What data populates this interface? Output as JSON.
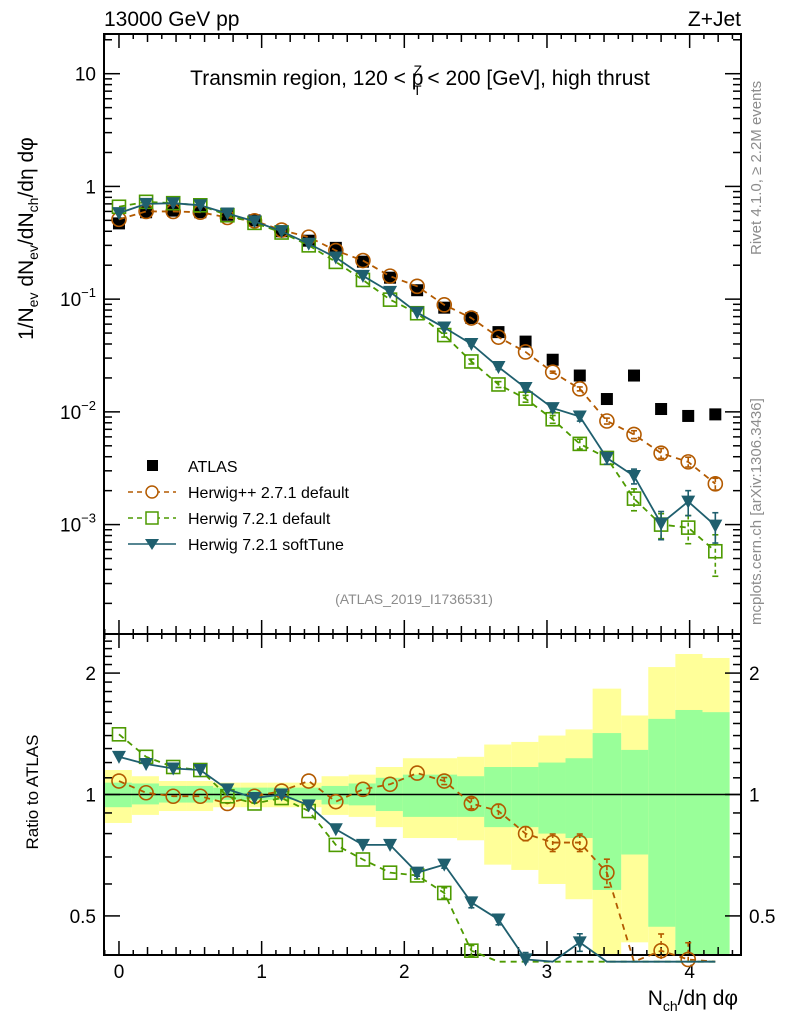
{
  "header": {
    "left": "13000 GeV pp",
    "right": "Z+Jet"
  },
  "side_labels": {
    "rivet": "Rivet 4.1.0, ≥ 2.2M events",
    "mcplots": "mcplots.cern.ch [arXiv:1306.3436]"
  },
  "chart_data": [
    {
      "type": "scatter",
      "title": "Transmin region, 120 < p_T^Z < 200 [GeV], high thrust",
      "title_parts": {
        "pre": "Transmin region, 120 < p",
        "sup": "Z",
        "sub": "T",
        "post": " < 200 [GeV], high thrust"
      },
      "ylabel": "1/N_ev dN_ev/dN_ch/dη dφ",
      "ylabel_parts": [
        "1/N",
        "ev",
        " dN",
        "ev",
        "/dN",
        "ch",
        "/dη dφ"
      ],
      "xlabel": "N_ch/dη dφ",
      "yscale": "log",
      "ylim": [
        0.000107,
        22.5
      ],
      "xlim": [
        -0.105,
        4.36
      ],
      "yticks": [
        {
          "value": 10,
          "label": "10",
          "exp": ""
        },
        {
          "value": 1,
          "label": "1",
          "exp": ""
        },
        {
          "value": 0.1,
          "label": "10",
          "exp": "−1"
        },
        {
          "value": 0.01,
          "label": "10",
          "exp": "−2"
        },
        {
          "value": 0.001,
          "label": "10",
          "exp": "−3"
        }
      ],
      "annotation": "(ATLAS_2019_I1736531)",
      "legend_position": "lower-left",
      "x": [
        0,
        0.19,
        0.38,
        0.57,
        0.76,
        0.95,
        1.14,
        1.33,
        1.52,
        1.71,
        1.9,
        2.09,
        2.28,
        2.47,
        2.66,
        2.85,
        3.04,
        3.23,
        3.42,
        3.61,
        3.8,
        3.99,
        4.18
      ],
      "series": [
        {
          "name": "ATLAS",
          "style": "data",
          "color": "#000000",
          "values": [
            0.47,
            0.59,
            0.61,
            0.59,
            0.56,
            0.5,
            0.4,
            0.33,
            0.285,
            0.215,
            0.155,
            0.12,
            0.084,
            0.068,
            0.051,
            0.042,
            0.029,
            0.021,
            0.013,
            0.021,
            0.0106,
            0.0092,
            0.0095
          ]
        },
        {
          "name": "Herwig++ 2.7.1 default",
          "style": "circle-dashed",
          "color": "#b35a00",
          "values": [
            0.51,
            0.6,
            0.6,
            0.59,
            0.53,
            0.495,
            0.41,
            0.355,
            0.27,
            0.22,
            0.16,
            0.13,
            0.089,
            0.068,
            0.046,
            0.034,
            0.0225,
            0.016,
            0.0083,
            0.0063,
            0.0043,
            0.0036,
            0.0023
          ],
          "errors": [
            0,
            0,
            0,
            0,
            0,
            0,
            0,
            0,
            0,
            0,
            0,
            0,
            0,
            0,
            0,
            0,
            0.02,
            0.04,
            0.06,
            0.08,
            0.1,
            0.1,
            0.12
          ]
        },
        {
          "name": "Herwig 7.2.1 default",
          "style": "square-dashed",
          "color": "#4d9a00",
          "values": [
            0.66,
            0.73,
            0.71,
            0.68,
            0.555,
            0.475,
            0.39,
            0.3,
            0.214,
            0.148,
            0.099,
            0.075,
            0.048,
            0.028,
            0.0175,
            0.0131,
            0.0086,
            0.0052,
            0.0039,
            0.0017,
            0.001,
            0.00094,
            0.00058
          ],
          "errors": [
            0,
            0,
            0,
            0,
            0,
            0,
            0,
            0,
            0,
            0,
            0,
            0,
            0.04,
            0.05,
            0.06,
            0.07,
            0.08,
            0.1,
            0.12,
            0.22,
            0.25,
            0.28,
            0.4
          ]
        },
        {
          "name": "Herwig 7.2.1 softTune",
          "style": "triangle-solid",
          "color": "#1f5f6e",
          "values": [
            0.58,
            0.7,
            0.71,
            0.68,
            0.575,
            0.49,
            0.4,
            0.31,
            0.234,
            0.161,
            0.116,
            0.076,
            0.056,
            0.04,
            0.025,
            0.0163,
            0.0108,
            0.0091,
            0.0039,
            0.0027,
            0.00102,
            0.0016,
            0.00098
          ],
          "errors": [
            0,
            0,
            0,
            0,
            0,
            0,
            0,
            0,
            0,
            0,
            0,
            0,
            0.03,
            0.04,
            0.05,
            0.06,
            0.07,
            0.09,
            0.12,
            0.15,
            0.28,
            0.25,
            0.3
          ]
        }
      ]
    },
    {
      "type": "scatter",
      "ylabel": "Ratio to ATLAS",
      "xlabel": "N_ch/dη dφ",
      "xlabel_parts": [
        "N",
        "ch",
        "/dη dφ"
      ],
      "yscale": "log",
      "ylim": [
        0.4,
        2.5
      ],
      "xlim": [
        -0.105,
        4.36
      ],
      "yticks": [
        {
          "value": 2,
          "label": "2"
        },
        {
          "value": 1,
          "label": "1"
        },
        {
          "value": 0.5,
          "label": "0.5"
        }
      ],
      "xticks": [
        {
          "value": 0,
          "label": "0"
        },
        {
          "value": 1,
          "label": "1"
        },
        {
          "value": 2,
          "label": "2"
        },
        {
          "value": 3,
          "label": "3"
        },
        {
          "value": 4,
          "label": "4"
        }
      ],
      "reference_line": 1,
      "bins": [
        -0.105,
        0.09,
        0.28,
        0.47,
        0.66,
        0.85,
        1.04,
        1.23,
        1.42,
        1.61,
        1.8,
        1.99,
        2.18,
        2.37,
        2.56,
        2.75,
        2.94,
        3.13,
        3.32,
        3.52,
        3.71,
        3.9,
        4.09,
        4.28
      ],
      "band_total": {
        "color": "#ffff99",
        "upper": [
          1.15,
          1.11,
          1.08,
          1.08,
          1.07,
          1.07,
          1.07,
          1.07,
          1.11,
          1.12,
          1.17,
          1.23,
          1.23,
          1.24,
          1.33,
          1.35,
          1.4,
          1.45,
          1.83,
          1.57,
          2.07,
          2.23,
          2.18
        ],
        "lower": [
          0.85,
          0.89,
          0.91,
          0.91,
          0.93,
          0.93,
          0.93,
          0.93,
          0.89,
          0.88,
          0.83,
          0.78,
          0.78,
          0.77,
          0.67,
          0.65,
          0.6,
          0.55,
          0.3,
          0.43,
          0.3,
          0.3,
          0.38
        ]
      },
      "band_stat": {
        "color": "#99ff99",
        "upper": [
          1.07,
          1.065,
          1.05,
          1.05,
          1.04,
          1.04,
          1.04,
          1.04,
          1.05,
          1.065,
          1.1,
          1.12,
          1.12,
          1.11,
          1.17,
          1.17,
          1.2,
          1.23,
          1.42,
          1.29,
          1.54,
          1.62,
          1.6
        ],
        "lower": [
          0.93,
          0.945,
          0.955,
          0.955,
          0.97,
          0.97,
          0.97,
          0.97,
          0.945,
          0.94,
          0.91,
          0.88,
          0.88,
          0.88,
          0.83,
          0.83,
          0.8,
          0.78,
          0.58,
          0.71,
          0.47,
          0.3,
          0.3
        ]
      },
      "series": [
        {
          "name": "Herwig++ 2.7.1 default",
          "style": "circle-dashed",
          "color": "#b35a00",
          "values": [
            1.08,
            1.01,
            0.99,
            0.99,
            0.95,
            0.99,
            1.02,
            1.08,
            0.96,
            1.03,
            1.06,
            1.13,
            1.08,
            0.95,
            0.91,
            0.8,
            0.76,
            0.76,
            0.64,
            0.3,
            0.41,
            0.39,
            0.25
          ],
          "errors": [
            0,
            0,
            0,
            0,
            0,
            0,
            0,
            0,
            0,
            0,
            0,
            0,
            0.02,
            0.03,
            0.04,
            0.04,
            0.05,
            0.05,
            0.08,
            0.1,
            0.1,
            0.1,
            0.1
          ]
        },
        {
          "name": "Herwig 7.2.1 default",
          "style": "square-dashed",
          "color": "#4d9a00",
          "values": [
            1.41,
            1.24,
            1.17,
            1.15,
            0.99,
            0.95,
            0.98,
            0.91,
            0.75,
            0.69,
            0.64,
            0.63,
            0.57,
            0.41,
            0.34,
            0.31,
            0.3,
            0.25,
            0.3,
            0.08,
            0.09,
            0.1,
            0.06
          ],
          "errors": [
            0,
            0,
            0,
            0,
            0,
            0,
            0,
            0,
            0,
            0,
            0,
            0.02,
            0.03,
            0.03,
            0.03,
            0.03,
            0.03,
            0.03,
            0.04,
            0.02,
            0.02,
            0.03,
            0.02
          ]
        },
        {
          "name": "Herwig 7.2.1 softTune",
          "style": "triangle-solid",
          "color": "#1f5f6e",
          "values": [
            1.24,
            1.19,
            1.16,
            1.15,
            1.03,
            0.98,
            1.0,
            0.94,
            0.82,
            0.75,
            0.75,
            0.64,
            0.67,
            0.54,
            0.49,
            0.39,
            0.37,
            0.43,
            0.3,
            0.13,
            0.1,
            0.17,
            0.1
          ],
          "errors": [
            0,
            0,
            0,
            0,
            0,
            0,
            0,
            0,
            0,
            0,
            0,
            0.02,
            0.02,
            0.03,
            0.03,
            0.04,
            0.04,
            0.05,
            0.06,
            0.05,
            0.05,
            0.05,
            0.05
          ]
        }
      ]
    }
  ],
  "legend": [
    {
      "label": "ATLAS",
      "style": "data",
      "color": "#000000"
    },
    {
      "label": "Herwig++ 2.7.1 default",
      "style": "circle-dashed",
      "color": "#b35a00"
    },
    {
      "label": "Herwig 7.2.1 default",
      "style": "square-dashed",
      "color": "#4d9a00"
    },
    {
      "label": "Herwig 7.2.1 softTune",
      "style": "triangle-solid",
      "color": "#1f5f6e"
    }
  ]
}
